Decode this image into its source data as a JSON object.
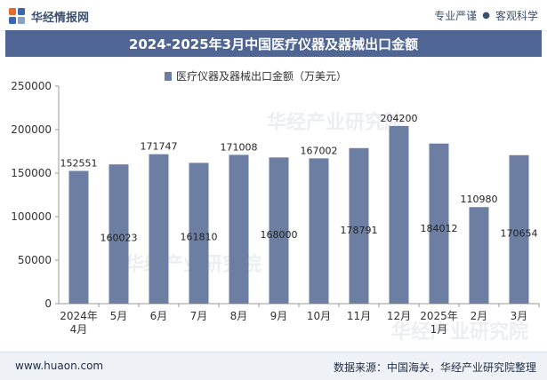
{
  "header": {
    "brand": "华经情报网",
    "slogan_left": "专业严谨",
    "slogan_right": "客观科学"
  },
  "watermark": "华经产业研究院",
  "footer": {
    "url": "www.huaon.com",
    "source": "数据来源：中国海关，华经产业研究院整理"
  },
  "colors": {
    "bar": "#6c7fa3",
    "title_band": "#4f6594"
  },
  "chart_data": {
    "type": "bar",
    "title": "2024-2025年3月中国医疗仪器及器械出口金额",
    "legend": "医疗仪器及器械出口金额（万美元）",
    "legend_position": "top-center",
    "categories": [
      [
        "2024年",
        "4月"
      ],
      [
        "5月"
      ],
      [
        "6月"
      ],
      [
        "7月"
      ],
      [
        "8月"
      ],
      [
        "9月"
      ],
      [
        "10月"
      ],
      [
        "11月"
      ],
      [
        "12月"
      ],
      [
        "2025年",
        "1月"
      ],
      [
        "2月"
      ],
      [
        "3月"
      ]
    ],
    "values": [
      152551,
      160023,
      171747,
      161810,
      171008,
      168000,
      167002,
      178791,
      204200,
      184012,
      110980,
      170654
    ],
    "label_placement": [
      "above",
      "inside",
      "above",
      "inside",
      "above",
      "inside",
      "above",
      "inside",
      "above",
      "inside",
      "above",
      "inside"
    ],
    "y_ticks": [
      0,
      50000,
      100000,
      150000,
      200000,
      250000
    ],
    "ylim": [
      0,
      250000
    ],
    "grid": false
  }
}
